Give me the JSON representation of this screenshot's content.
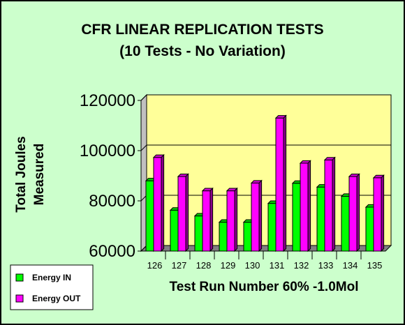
{
  "chart_data": {
    "type": "bar",
    "title": "CFR LINEAR REPLICATION TESTS",
    "subtitle": "(10 Tests - No Variation)",
    "xlabel": "Test Run Number 60% -1.0Mol",
    "ylabel_lines": [
      "Total Joules",
      "Measured"
    ],
    "categories": [
      "126",
      "127",
      "128",
      "129",
      "130",
      "131",
      "132",
      "133",
      "134",
      "135"
    ],
    "ylim": [
      60000,
      120000
    ],
    "yticks": [
      "60000",
      "80000",
      "100000",
      "120000"
    ],
    "grid": true,
    "legend_position": "bottom-left",
    "series": [
      {
        "name": "Energy IN",
        "color": "#00ff00",
        "values": [
          88000,
          76300,
          74000,
          71500,
          71500,
          79000,
          87000,
          85500,
          81800,
          77500
        ]
      },
      {
        "name": "Energy OUT",
        "color": "#ff00ff",
        "values": [
          97300,
          89700,
          84000,
          84000,
          87100,
          113000,
          95000,
          96300,
          89700,
          89200
        ]
      }
    ],
    "colors": {
      "plot_background": "#ffff99",
      "chart_background": "#ccffcc",
      "floor": "#808080"
    }
  }
}
